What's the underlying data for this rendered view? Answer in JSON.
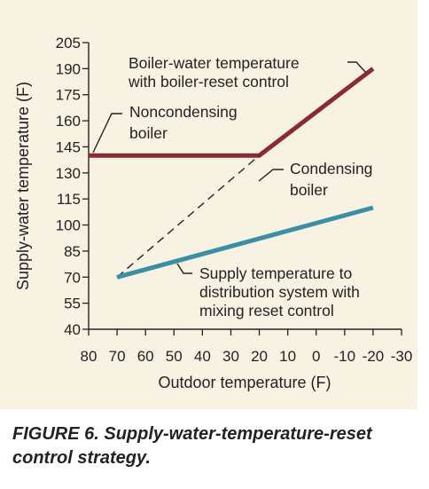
{
  "figure_caption": "FIGURE 6. Supply-water-temperature-reset control strategy.",
  "colors": {
    "panel_background": "#f8f2e3",
    "boiler_reset_line": "#8c2a33",
    "mixing_reset_line": "#3b8ea5",
    "condensing_line": "#222222"
  },
  "chart_data": {
    "type": "line",
    "title": "",
    "xlabel": "Outdoor temperature (F)",
    "ylabel": "Supply-water temperature (F)",
    "xlim": [
      80,
      -30
    ],
    "ylim": [
      40,
      205
    ],
    "x_reversed": true,
    "grid": false,
    "x_ticks": [
      80,
      70,
      60,
      50,
      40,
      30,
      20,
      10,
      0,
      -10,
      -20,
      -30
    ],
    "x_tick_labels": [
      "80",
      "70",
      "60",
      "50",
      "40",
      "30",
      "20",
      "10",
      "0",
      "-10",
      "-20",
      "-30"
    ],
    "y_ticks": [
      40,
      55,
      70,
      85,
      100,
      115,
      130,
      145,
      160,
      175,
      190,
      205
    ],
    "y_tick_labels": [
      "40",
      "55",
      "70",
      "85",
      "100",
      "115",
      "130",
      "145",
      "160",
      "175",
      "190",
      "205"
    ],
    "series": [
      {
        "key": "boiler-reset",
        "style": "solid-thick",
        "color": "#8c2a33",
        "points": [
          [
            80,
            140
          ],
          [
            20,
            140
          ],
          [
            -20,
            190
          ]
        ]
      },
      {
        "key": "condensing",
        "style": "dashed",
        "color": "#222222",
        "points": [
          [
            70,
            70
          ],
          [
            20,
            140
          ]
        ]
      },
      {
        "key": "mixing-reset",
        "style": "solid-thick",
        "color": "#3b8ea5",
        "points": [
          [
            70,
            70
          ],
          [
            -20,
            110
          ]
        ]
      }
    ],
    "annotations": [
      {
        "key": "boiler-reset",
        "lines": [
          "Boiler-water temperature",
          "with boiler-reset control"
        ]
      },
      {
        "key": "noncondensing",
        "lines": [
          "Noncondensing",
          "boiler"
        ]
      },
      {
        "key": "condensing",
        "lines": [
          "Condensing",
          "boiler"
        ]
      },
      {
        "key": "mixing-reset",
        "lines": [
          "Supply temperature to",
          "distribution system with",
          "mixing reset control"
        ]
      }
    ]
  }
}
